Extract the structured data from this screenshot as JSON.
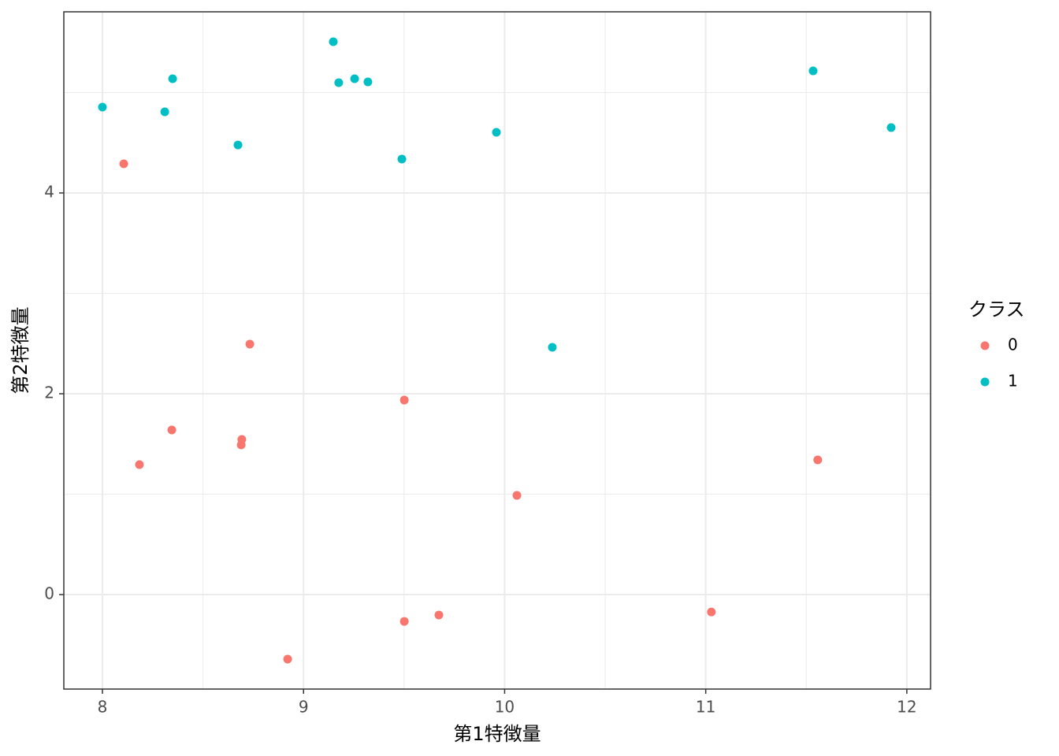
{
  "chart_data": {
    "type": "scatter",
    "x_label": "第1特徴量",
    "y_label": "第2特徴量",
    "legend_title": "クラス",
    "xlim": [
      7.808,
      12.118
    ],
    "ylim": [
      -0.941,
      5.804
    ],
    "xticks": [
      8,
      9,
      10,
      11,
      12
    ],
    "yticks": [
      0,
      2,
      4
    ],
    "xminor": [
      8.5,
      9.5,
      10.5,
      11.5
    ],
    "yminor": [
      1,
      3,
      5
    ],
    "grid": true,
    "legend": "right",
    "series": [
      {
        "name": "0",
        "color": "#F8766D",
        "x": [
          8.106,
          8.184,
          8.345,
          8.693,
          8.69,
          8.733,
          8.921,
          9.501,
          9.501,
          9.673,
          10.061,
          11.028,
          11.557
        ],
        "values": [
          4.29,
          1.294,
          1.639,
          1.545,
          1.49,
          2.494,
          -0.643,
          1.937,
          -0.267,
          -0.204,
          0.988,
          -0.173,
          1.341
        ]
      },
      {
        "name": "1",
        "color": "#00BFC4",
        "x": [
          8.0,
          8.31,
          8.349,
          8.674,
          9.148,
          9.175,
          9.254,
          9.32,
          9.489,
          9.959,
          10.237,
          11.534,
          11.922
        ],
        "values": [
          4.855,
          4.808,
          5.137,
          4.478,
          5.506,
          5.098,
          5.137,
          5.106,
          4.337,
          4.604,
          2.463,
          5.216,
          4.651
        ]
      }
    ]
  }
}
